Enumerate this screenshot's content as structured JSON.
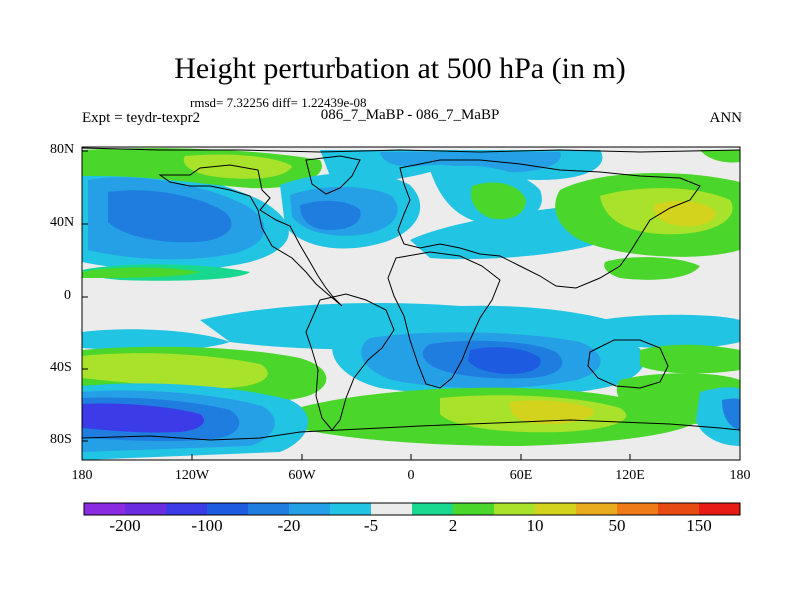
{
  "title": "Height perturbation at 500 hPa (in m)",
  "stats": "rmsd= 7.32256 diff= 1.22439e-08",
  "left_label": "Expt = teydr-texpr2",
  "center_label": "086_7_MaBP - 086_7_MaBP",
  "right_label": "ANN",
  "y_ticks": [
    "80N",
    "40N",
    "0",
    "40S",
    "80S"
  ],
  "x_ticks": [
    "180",
    "120W",
    "60W",
    "0",
    "60E",
    "120E",
    "180"
  ],
  "colorbar": {
    "labels": [
      "-200",
      "-100",
      "-20",
      "-5",
      "2",
      "10",
      "50",
      "150"
    ],
    "colors": [
      "#8a2be2",
      "#6a2de0",
      "#3b3be8",
      "#1d5ce0",
      "#1f7de0",
      "#25a0e6",
      "#22c4e3",
      "#ececec",
      "#18d890",
      "#4ad62a",
      "#a9e22b",
      "#d3d21c",
      "#e8ac1e",
      "#ee7a18",
      "#e84a14",
      "#e51b14"
    ]
  },
  "map_colors": {
    "background": "#ececec",
    "light_blue": "#22c4e3",
    "mid_blue": "#25a0e6",
    "blue": "#1f7de0",
    "dark_blue": "#1d5ce0",
    "deep_blue": "#3b3be8",
    "green_teal": "#18d890",
    "green": "#4ad62a",
    "yellow_green": "#a9e22b",
    "yellow": "#d3d21c",
    "orange": "#e8ac1e"
  }
}
